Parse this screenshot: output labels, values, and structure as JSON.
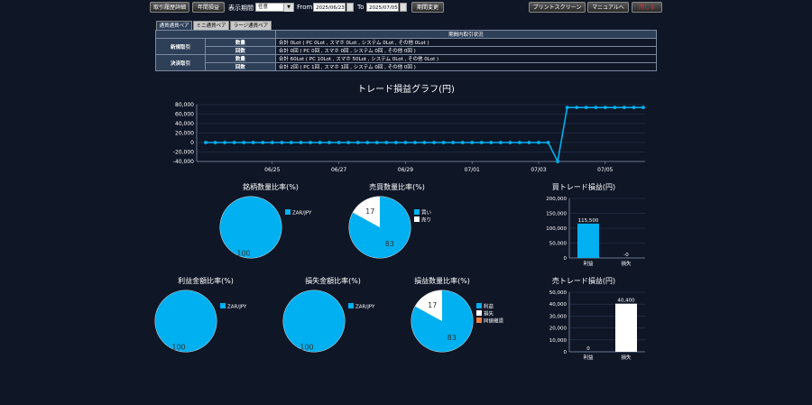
{
  "toolbar": {
    "trade_detail_button": "取引履歴詳細",
    "annual_pnl_button": "年間損益",
    "display_period_label": "表示期間",
    "period_select_value": "任意",
    "from_label": "From",
    "from_date": "2025/06/23",
    "to_label": "To",
    "to_date": "2025/07/05",
    "period_change_button": "期間変更",
    "print_screen_button": "プリントスクリーン",
    "manual_button": "マニュアルへ",
    "close_button": "閉じる"
  },
  "tabs": [
    "通貨通貨ペア",
    "ミニ通貨ペア",
    "ラージ通貨ペア"
  ],
  "summary": {
    "header": "期間内取引状況",
    "sections": [
      {
        "name": "新規取引",
        "rows": [
          {
            "label": "数量",
            "value": "合計 0Lot ( PC 0Lot , スマホ 0Lot , システム 0Lot , その他 0Lot )"
          },
          {
            "label": "回数",
            "value": "合計 0回 ( PC 0回 , スマホ 0回 , システム 0回 , その他 0回 )"
          }
        ]
      },
      {
        "name": "決済取引",
        "rows": [
          {
            "label": "数量",
            "value": "合計 60Lot ( PC 10Lot , スマホ 50Lot , システム 0Lot , その他 0Lot )"
          },
          {
            "label": "回数",
            "value": "合計 2回 ( PC 1回 , スマホ 1回 , システム 0回 , その他 0回 )"
          }
        ]
      }
    ]
  },
  "line_chart": {
    "title": "トレード損益グラフ(円)",
    "chart_data": {
      "type": "line",
      "ylim": [
        -40000,
        80000
      ],
      "yticks": [
        80000,
        60000,
        40000,
        20000,
        0,
        -20000,
        -40000
      ],
      "ytick_labels": [
        "80,000",
        "60,000",
        "40,000",
        "20,000",
        "0",
        "-20,000",
        "-40,000"
      ],
      "xticks": [
        "06/25",
        "06/27",
        "06/29",
        "07/01",
        "07/03",
        "07/05"
      ],
      "xtick_index": [
        7,
        14,
        21,
        28,
        35,
        42
      ],
      "values": [
        0,
        0,
        0,
        0,
        0,
        0,
        0,
        0,
        0,
        0,
        0,
        0,
        0,
        0,
        0,
        0,
        0,
        0,
        0,
        0,
        0,
        0,
        0,
        0,
        0,
        0,
        0,
        0,
        0,
        0,
        0,
        0,
        0,
        0,
        0,
        0,
        0,
        -40000,
        74000,
        74000,
        74000,
        74000,
        74000,
        74000,
        74000,
        74000,
        74000
      ]
    }
  },
  "pies": [
    {
      "title": "銘柄数量比率(%)",
      "slices": [
        {
          "name": "ZAR/JPY",
          "value": 100,
          "color": "#00b0f0"
        }
      ]
    },
    {
      "title": "売買数量比率(%)",
      "slices": [
        {
          "name": "買い",
          "value": 83,
          "color": "#00b0f0"
        },
        {
          "name": "売り",
          "value": 17,
          "color": "#ffffff"
        }
      ]
    },
    {
      "title": "利益金額比率(%)",
      "slices": [
        {
          "name": "ZAR/JPY",
          "value": 100,
          "color": "#00b0f0"
        }
      ]
    },
    {
      "title": "損失金額比率(%)",
      "slices": [
        {
          "name": "ZAR/JPY",
          "value": 100,
          "color": "#00b0f0"
        }
      ]
    },
    {
      "title": "損益数量比率(%)",
      "slices": [
        {
          "name": "利益",
          "value": 83,
          "color": "#00b0f0"
        },
        {
          "name": "損失",
          "value": 17,
          "color": "#ffffff"
        }
      ],
      "extra_legend": [
        {
          "name": "同値撤退",
          "color": "#f08040"
        }
      ]
    }
  ],
  "bars": [
    {
      "title": "買トレード損益(円)",
      "chart_data": {
        "type": "bar",
        "categories": [
          "利益",
          "損失"
        ],
        "values": [
          115500,
          0
        ],
        "labels": [
          "115,500",
          "-0"
        ],
        "colors": [
          "#00b0f0",
          "#00b0f0"
        ],
        "ylim": [
          0,
          200000
        ],
        "yticks": [
          0,
          50000,
          100000,
          150000,
          200000
        ],
        "ytick_labels": [
          "0",
          "50,000",
          "100,000",
          "150,000",
          "200,000"
        ]
      }
    },
    {
      "title": "売トレード損益(円)",
      "chart_data": {
        "type": "bar",
        "categories": [
          "利益",
          "損失"
        ],
        "values": [
          0,
          40400
        ],
        "labels": [
          "0",
          "40,400"
        ],
        "colors": [
          "#00b0f0",
          "#ffffff"
        ],
        "ylim": [
          0,
          50000
        ],
        "yticks": [
          0,
          10000,
          20000,
          30000,
          40000,
          50000
        ],
        "ytick_labels": [
          "0",
          "10,000",
          "20,000",
          "30,000",
          "40,000",
          "50,000"
        ]
      }
    }
  ]
}
